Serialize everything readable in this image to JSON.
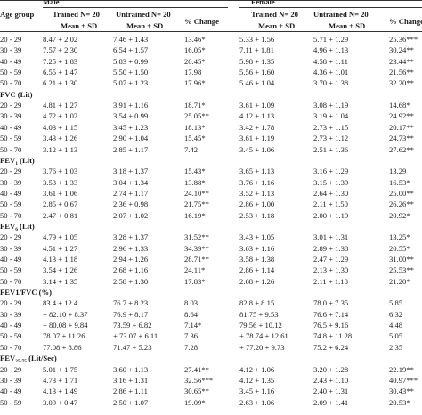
{
  "header": {
    "age_group": "Age group",
    "male": "Male",
    "female": "Female",
    "trained_male": "Trained N= 20",
    "untrained_male": "Untrained N= 20",
    "trained_female": "Trained N= 20",
    "untrained_female": "Untrained N= 20",
    "mean_sd": "Mean + SD",
    "pct_change": "% Change"
  },
  "rows": [
    {
      "type": "data",
      "cells": [
        "20 - 29",
        "8.47 + 2.02",
        "7.46 + 1.43",
        "13.46*",
        "5.33 + 1.56",
        "5.71 + 1.29",
        "25.36***"
      ]
    },
    {
      "type": "data",
      "cells": [
        "30 - 39",
        "7.57 + 2.30",
        "6.54 + 1.57",
        "16.05*",
        "7.11 + 1.81",
        "4.96 + 1.13",
        "30.24**"
      ]
    },
    {
      "type": "data",
      "cells": [
        "40 - 49",
        "7.25 + 1.83",
        "5.83 + 0.99",
        "20.45*",
        "5.98 + 1.35",
        "4.58 + 1.11",
        "23.44**"
      ]
    },
    {
      "type": "data",
      "cells": [
        "50 - 59",
        "6.55 + 1.47",
        "5.50 + 1.50",
        "17.98",
        "5.56 + 1.60",
        "4.36 + 1.01",
        "21.56**"
      ]
    },
    {
      "type": "data",
      "cells": [
        "50 - 70",
        "6.21 + 1.30",
        "5.07 + 1.23",
        "17.96*",
        "5.46 + 1.04",
        "3.70 + 1.38",
        "32.20**"
      ]
    },
    {
      "type": "section",
      "label": "FVC (Lit)"
    },
    {
      "type": "data",
      "cells": [
        "20 - 29",
        "4.81 + 1.27",
        "3.91 + 1.16",
        "18.71*",
        "3.61 + 1.09",
        "3.08 + 1.19",
        "14.68*"
      ]
    },
    {
      "type": "data",
      "cells": [
        "30 - 39",
        "4.72 + 1.02",
        "3.54 + 0.99",
        "25.05**",
        "4.12 + 1.13",
        "3.19 + 1.04",
        "24.92**"
      ]
    },
    {
      "type": "data",
      "cells": [
        "40 - 49",
        "4.03 + 1.15",
        "3.45 + 1.23",
        "18.13*",
        "3.42 + 1.78",
        "2.73 + 1.15",
        "20.17**"
      ]
    },
    {
      "type": "data",
      "cells": [
        "50 - 59",
        "3.43 + 1.26",
        "2.90 + 1.04",
        "15.45*",
        "3.61 + 1.19",
        "2.73 + 1.12",
        "24.73**"
      ]
    },
    {
      "type": "data",
      "cells": [
        "50 - 70",
        "3.12 + 1.13",
        "2.85 + 1.17",
        "7.42",
        "3.45 + 1.06",
        "2.51 + 1.36",
        "27.62**"
      ]
    },
    {
      "type": "section",
      "label": "FEV",
      "sub": "1",
      "suffix": " (Lit)"
    },
    {
      "type": "data",
      "cells": [
        "20 - 29",
        "3.76 + 1.03",
        "3.18 + 1.37",
        "15.43*",
        "3.65 + 1.13",
        "3.16 + 1.29",
        "13.29"
      ]
    },
    {
      "type": "data",
      "cells": [
        "30 - 39",
        "3.53 + 1.33",
        "3.04 + 1.34",
        "13.88*",
        "3.76 + 1.16",
        "3.15 + 1.39",
        "16.53*"
      ]
    },
    {
      "type": "data",
      "cells": [
        "40 - 49",
        "3.61 + 1.06",
        "2.74 + 1.17",
        "24.10**",
        "3.52 + 1.13",
        "2.64 + 1.30",
        "25.00**"
      ]
    },
    {
      "type": "data",
      "cells": [
        "50 - 59",
        "2.85 + 0.67",
        "2.36 + 0.98",
        "21.75**",
        "2.86 + 1.00",
        "2.11 + 1.50",
        "26.26**"
      ]
    },
    {
      "type": "data",
      "cells": [
        "50 - 70",
        "2.47 + 0.81",
        "2.07 + 1.02",
        "16.19*",
        "2.53 + 1.18",
        "2.00 + 1.19",
        "20.92*"
      ]
    },
    {
      "type": "section",
      "label": "FEV",
      "sub": "6",
      "suffix": " (Lit)"
    },
    {
      "type": "data",
      "cells": [
        "20 - 29",
        "4.79 + 1.05",
        "3.28 + 1.37",
        "31.52**",
        "3.43 + 1.05",
        "3.01 + 1.31",
        "13.25*"
      ]
    },
    {
      "type": "data",
      "cells": [
        "30 - 39",
        "4.51 + 1.27",
        "2.96 + 1.33",
        "34.39**",
        "3.63 + 1.16",
        "2.89 + 1.38",
        "20.55*"
      ]
    },
    {
      "type": "data",
      "cells": [
        "40 - 49",
        "4.13 + 1.18",
        "2.94 + 1.26",
        "28.71**",
        "3.58 + 1.38",
        "2.47 + 1.29",
        "31.00**"
      ]
    },
    {
      "type": "data",
      "cells": [
        "50 - 59",
        "3.54 + 1.26",
        "2.68 + 1.16",
        "24.11*",
        "2.86 + 1.14",
        "2.13 + 1.30",
        "25.53**"
      ]
    },
    {
      "type": "data",
      "cells": [
        "50 - 70",
        "3.14 + 1.35",
        "2.58 + 1.30",
        "17.83*",
        "2.68 + 1.26",
        "2.11 + 1.18",
        "21.20*"
      ]
    },
    {
      "type": "section",
      "label": "FEV1/FVC (%)"
    },
    {
      "type": "data",
      "cells": [
        "20 - 29",
        "83.4   + 12.4",
        "76.7 + 8.23",
        "8.03",
        "82.8 + 8.15",
        "78.0 + 7.35",
        "5.85"
      ]
    },
    {
      "type": "data",
      "cells": [
        "30 - 39",
        "+ 82.10 + 8.37",
        "76.9 + 8.17",
        "8.64",
        "81.75 + 9.53",
        "76.6 + 7.14",
        "6.32"
      ]
    },
    {
      "type": "data",
      "cells": [
        "40 - 49",
        "+ 80.08 + 9.84",
        "73.59 + 6.82",
        "7.14*",
        "79.56 + 10.12",
        "76.5 + 9.16",
        "4.48"
      ]
    },
    {
      "type": "data",
      "cells": [
        "50 - 59",
        "78.07 + 11.26",
        "+ 73.07 + 6.11",
        "7.36",
        "+ 78.74 + 12.61",
        "74.8 + 11.28",
        "5.05"
      ]
    },
    {
      "type": "data",
      "cells": [
        "50 - 70",
        "77.08 + 8.86",
        "71.47 + 5.23",
        "7.28",
        "+ 77.20 + 9.73",
        "75.2 + 6.24",
        "2.35"
      ]
    },
    {
      "type": "section",
      "label": "FEV",
      "sub": "25-75",
      "suffix": " (Lit/Sec)"
    },
    {
      "type": "data",
      "cells": [
        "20 - 29",
        "5.01 + 1.75",
        "3.60 + 1.13",
        "27.41**",
        "4.12 + 1.06",
        "3.20 + 1.28",
        "22.19**"
      ]
    },
    {
      "type": "data",
      "cells": [
        "30 - 39",
        "4.73 + 1.71",
        "3.16 + 1.31",
        "32.56***",
        "4.12 + 1.35",
        "2.43 + 1.10",
        "40.97***"
      ]
    },
    {
      "type": "data",
      "cells": [
        "40 - 49",
        "4.13 + 1.49",
        "2.86 + 1.11",
        "30.65**",
        "3.45 + 1.16",
        "2.40 + 1.31",
        "30.43**"
      ]
    },
    {
      "type": "data",
      "cells": [
        "50 - 59",
        "3.09 + 0.47",
        "2.50 + 1.07",
        "19.09*",
        "2.63 + 1.06",
        "2.09 + 1.41",
        "20.53*"
      ]
    }
  ]
}
